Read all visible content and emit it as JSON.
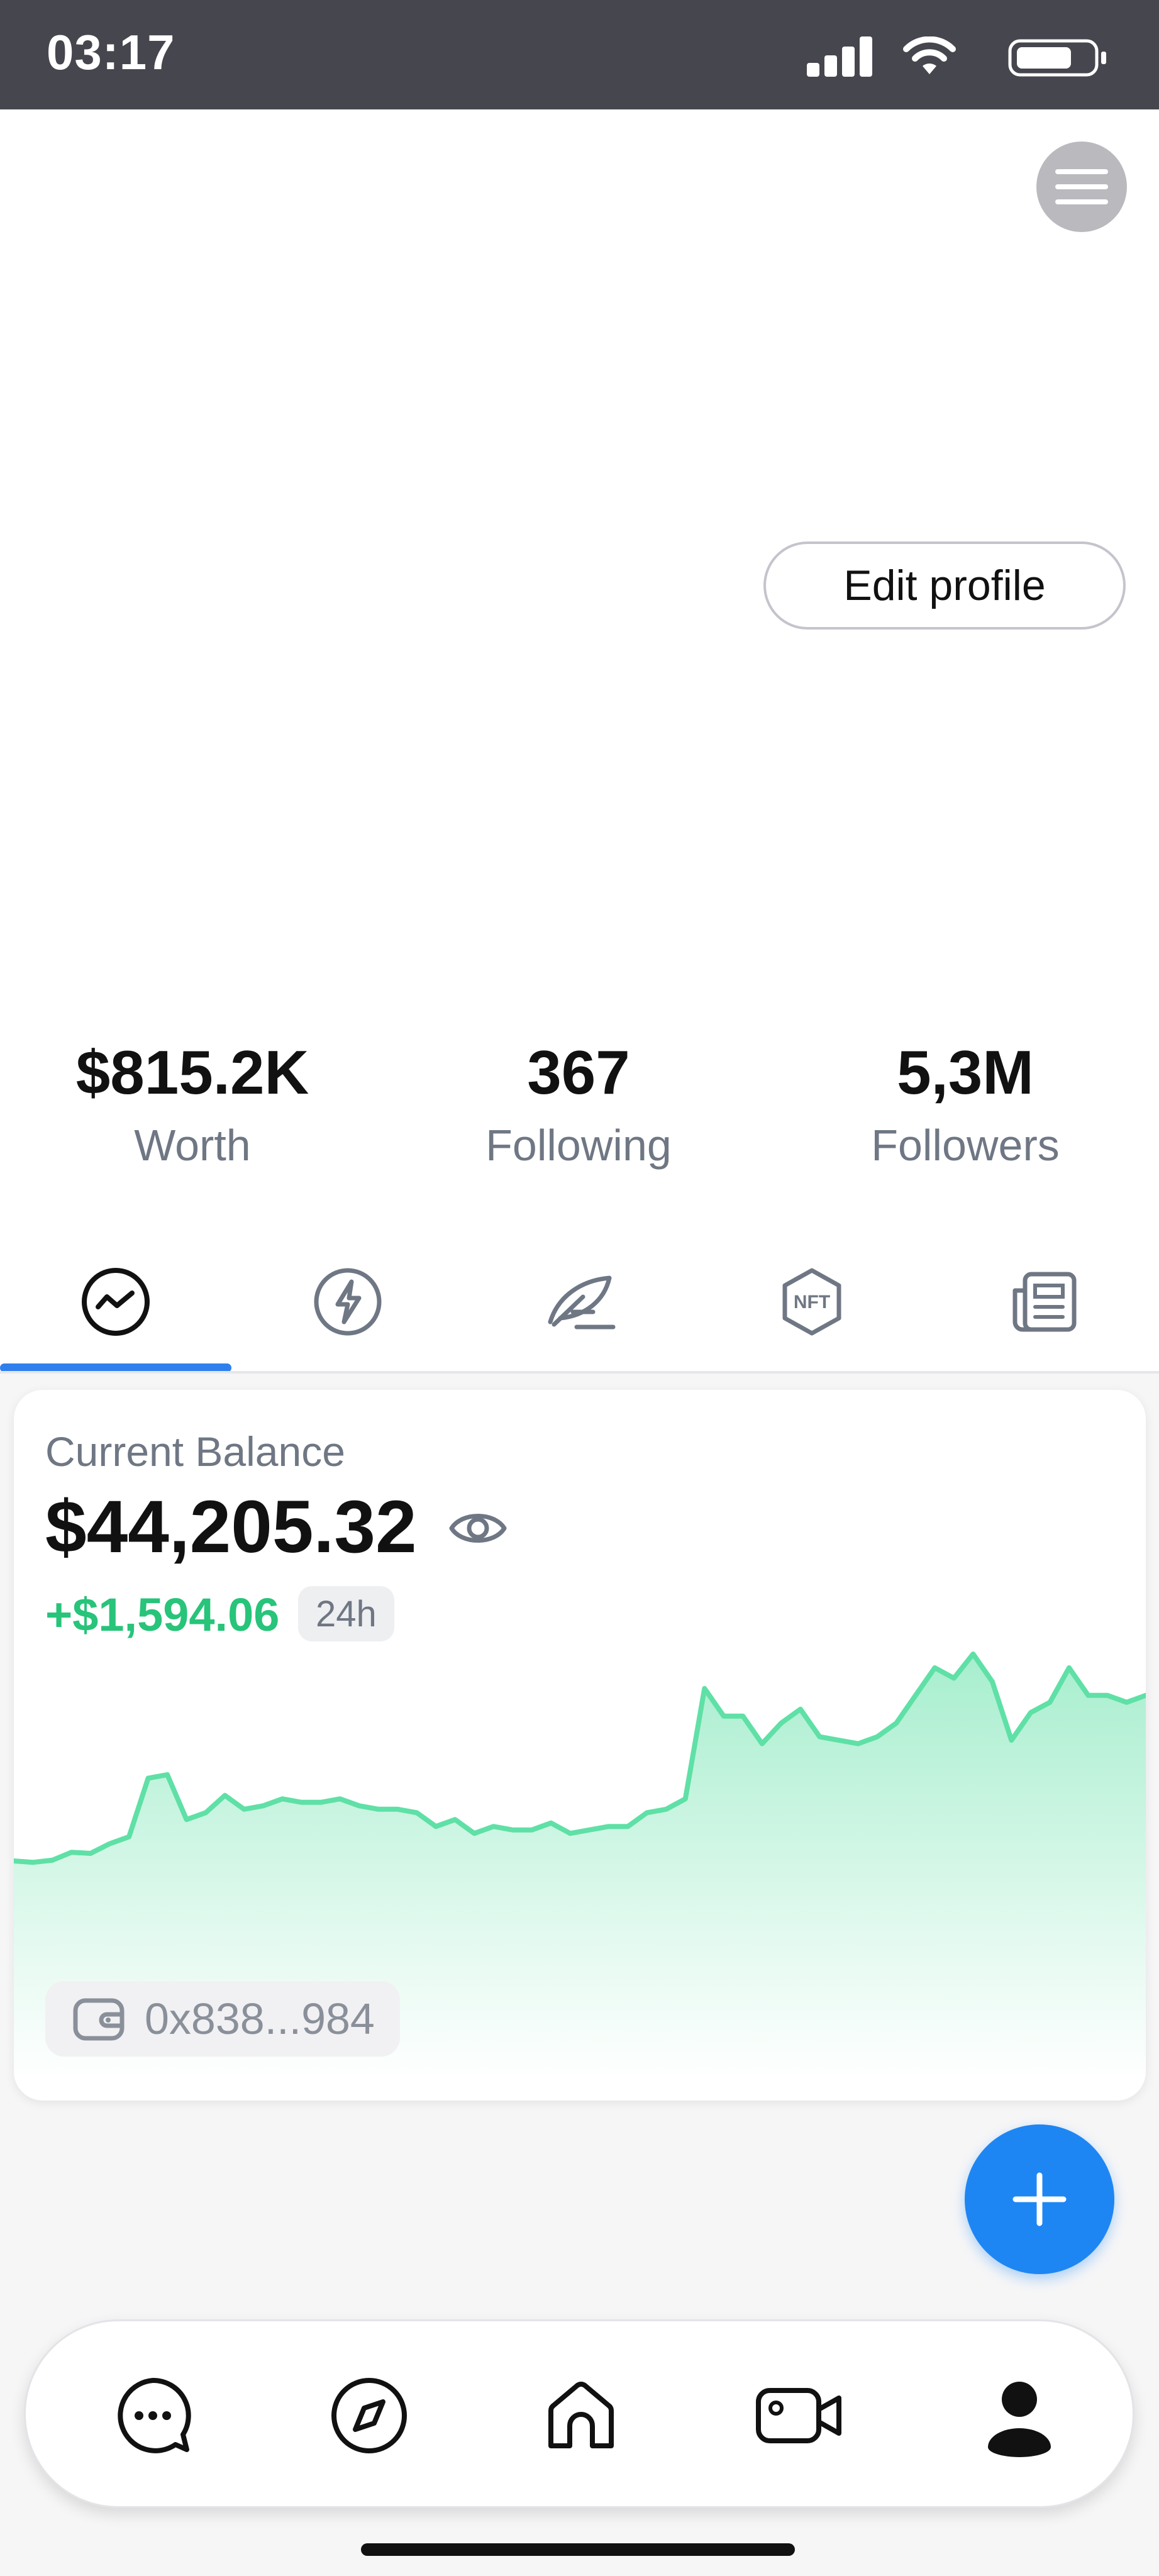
{
  "status_bar": {
    "time": "03:17",
    "icons": [
      "signal-icon",
      "wifi-icon",
      "battery-icon"
    ]
  },
  "header": {
    "menu_icon": "hamburger-menu-icon",
    "edit_profile_label": "Edit profile"
  },
  "stats": [
    {
      "value": "$815.2K",
      "label": "Worth"
    },
    {
      "value": "367",
      "label": "Following"
    },
    {
      "value": "5,3M",
      "label": "Followers"
    }
  ],
  "tabs": [
    {
      "icon": "chart-activity-icon",
      "active": true
    },
    {
      "icon": "lightning-icon",
      "active": false
    },
    {
      "icon": "feather-icon",
      "active": false
    },
    {
      "icon": "nft-icon",
      "active": false,
      "text": "NFT"
    },
    {
      "icon": "news-icon",
      "active": false
    }
  ],
  "balance_card": {
    "label": "Current Balance",
    "amount": "$44,205.32",
    "change": "+$1,594.06",
    "period": "24h",
    "wallet_address": "0x838...984",
    "accent_color": "#27c47a"
  },
  "chart_data": {
    "type": "area",
    "x": [
      0,
      1,
      2,
      3,
      4,
      5,
      6,
      7,
      8,
      9,
      10,
      11,
      12,
      13,
      14,
      15,
      16,
      17,
      18,
      19,
      20,
      21,
      22,
      23,
      24,
      25,
      26,
      27,
      28,
      29,
      30,
      31,
      32,
      33,
      34,
      35,
      36,
      37,
      38,
      39,
      40,
      41,
      42,
      43,
      44,
      45,
      46,
      47,
      48,
      49,
      50,
      51,
      52,
      53,
      54,
      55,
      56,
      57,
      58,
      59
    ],
    "y": [
      2,
      1.6,
      2.2,
      4.5,
      4.2,
      7,
      9,
      26,
      27,
      14,
      16,
      21,
      17,
      18,
      20,
      19,
      19,
      20,
      18,
      17,
      17,
      16,
      12,
      14,
      10,
      12,
      11,
      11,
      13,
      10,
      11,
      12,
      12,
      16,
      17,
      20,
      52,
      44,
      44,
      36,
      42,
      46,
      38,
      37,
      36,
      38,
      42,
      50,
      58,
      55,
      62,
      54,
      37,
      45,
      48,
      58,
      50,
      50,
      48,
      50
    ],
    "series_color": "#5fe0a6"
  },
  "fab": {
    "icon": "plus-icon"
  },
  "bottom_nav": [
    {
      "icon": "chat-bubble-icon",
      "active": false
    },
    {
      "icon": "compass-icon",
      "active": false
    },
    {
      "icon": "home-icon",
      "active": false
    },
    {
      "icon": "video-camera-icon",
      "active": false
    },
    {
      "icon": "profile-icon",
      "active": true
    }
  ]
}
